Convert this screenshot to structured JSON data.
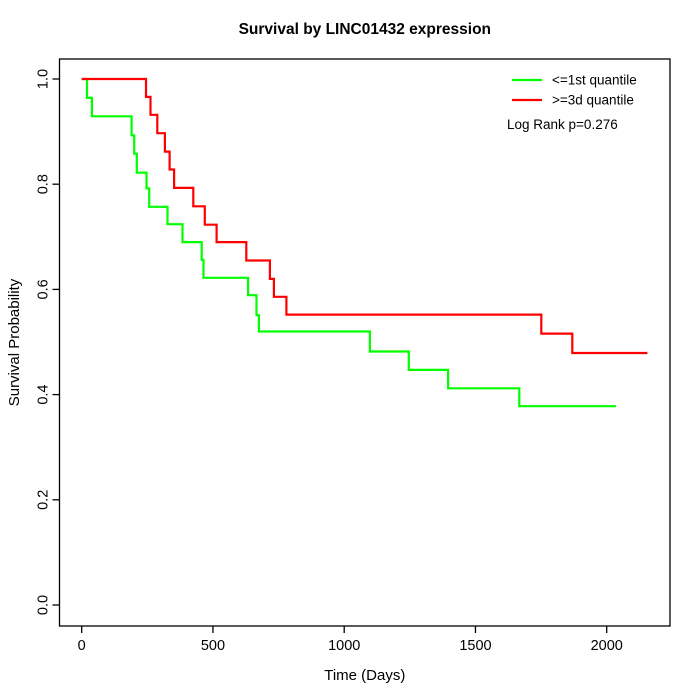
{
  "chart_data": {
    "type": "line",
    "subtype": "kaplan-meier-step",
    "title": "Survival by LINC01432 expression",
    "xlabel": "Time (Days)",
    "ylabel": "Survival Probability",
    "xlim": [
      0,
      2240
    ],
    "ylim": [
      0.0,
      1.0
    ],
    "grid": false,
    "x_ticks": [
      0,
      500,
      1000,
      1500,
      2000
    ],
    "y_ticks": [
      "0.0",
      "0.2",
      "0.4",
      "0.6",
      "0.8",
      "1.0"
    ],
    "legend_position": "top-right",
    "annotation": "Log Rank p=0.276",
    "legend": [
      {
        "label": "<=1st quantile",
        "color": "#00ff00"
      },
      {
        "label": ">=3d quantile",
        "color": "#ff0000"
      }
    ],
    "series": [
      {
        "name": "<=1st quantile",
        "color": "#00ff00",
        "step_points": [
          [
            0,
            1.0
          ],
          [
            20,
            0.964
          ],
          [
            39,
            0.929
          ],
          [
            190,
            0.893
          ],
          [
            200,
            0.858
          ],
          [
            210,
            0.822
          ],
          [
            247,
            0.792
          ],
          [
            257,
            0.757
          ],
          [
            327,
            0.724
          ],
          [
            384,
            0.69
          ],
          [
            457,
            0.656
          ],
          [
            464,
            0.622
          ],
          [
            634,
            0.589
          ],
          [
            666,
            0.551
          ],
          [
            675,
            0.52
          ],
          [
            1098,
            0.482
          ],
          [
            1246,
            0.447
          ],
          [
            1396,
            0.412
          ],
          [
            1667,
            0.378
          ],
          [
            2035,
            0.378
          ]
        ]
      },
      {
        "name": ">=3d quantile",
        "color": "#ff0000",
        "step_points": [
          [
            0,
            1.0
          ],
          [
            245,
            0.966
          ],
          [
            262,
            0.932
          ],
          [
            288,
            0.897
          ],
          [
            317,
            0.862
          ],
          [
            335,
            0.828
          ],
          [
            352,
            0.793
          ],
          [
            425,
            0.758
          ],
          [
            469,
            0.723
          ],
          [
            514,
            0.69
          ],
          [
            627,
            0.655
          ],
          [
            717,
            0.62
          ],
          [
            732,
            0.586
          ],
          [
            780,
            0.552
          ],
          [
            1751,
            0.516
          ],
          [
            1869,
            0.479
          ],
          [
            2155,
            0.479
          ]
        ]
      }
    ]
  }
}
